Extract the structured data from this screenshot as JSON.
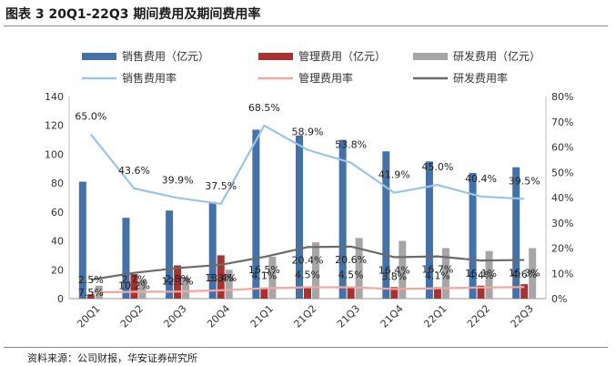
{
  "page": {
    "title": "图表 3 20Q1-22Q3 期间费用及期间费用率",
    "source": "资料来源：公司财报，华安证券研究所"
  },
  "chart_data": {
    "type": "bar",
    "title": "图表 3 20Q1-22Q3 期间费用及期间费用率",
    "categories": [
      "20Q1",
      "20Q2",
      "20Q3",
      "20Q4",
      "21Q1",
      "21Q2",
      "21Q3",
      "21Q4",
      "22Q1",
      "22Q2",
      "22Q3"
    ],
    "y_left": {
      "min": 0,
      "max": 140,
      "step": 20,
      "ticks": [
        "0",
        "20",
        "40",
        "60",
        "80",
        "100",
        "120",
        "140"
      ]
    },
    "y_right": {
      "min": 0,
      "max": 80,
      "step": 10,
      "ticks": [
        "0%",
        "10%",
        "20%",
        "30%",
        "40%",
        "50%",
        "60%",
        "70%",
        "80%"
      ]
    },
    "series": [
      {
        "name": "销售费用（亿元）",
        "type": "bar",
        "axis": "left",
        "color": "#4472a8",
        "values": [
          81,
          56,
          61,
          67,
          117,
          113,
          110,
          102,
          95,
          87,
          91
        ]
      },
      {
        "name": "管理费用（亿元）",
        "type": "bar",
        "axis": "left",
        "color": "#a83232",
        "values": [
          3,
          17,
          23,
          30,
          7,
          8,
          8,
          8,
          8,
          9,
          10
        ]
      },
      {
        "name": "研发费用（亿元）",
        "type": "bar",
        "axis": "left",
        "color": "#a6a6a6",
        "values": [
          9,
          13,
          15,
          20,
          29,
          39,
          42,
          40,
          35,
          33,
          35
        ]
      },
      {
        "name": "销售费用率",
        "type": "line",
        "axis": "right",
        "color": "#9dc3e6",
        "values": [
          65.0,
          43.6,
          39.9,
          37.5,
          68.5,
          58.9,
          53.8,
          41.9,
          45.0,
          40.4,
          39.5
        ],
        "labels": [
          "65.0%",
          "43.6%",
          "39.9%",
          "37.5%",
          "68.5%",
          "58.9%",
          "53.8%",
          "41.9%",
          "45.0%",
          "40.4%",
          "39.5%"
        ]
      },
      {
        "name": "管理费用率",
        "type": "line",
        "axis": "right",
        "color": "#f4a6a0",
        "values": [
          2.5,
          2.7,
          2.8,
          3.3,
          4.1,
          4.5,
          4.5,
          3.8,
          4.1,
          4.4,
          4.6
        ],
        "labels": [
          "2.5%",
          "2.7%",
          "2.8%",
          "3.3%",
          "4.1%",
          "4.5%",
          "4.5%",
          "3.8%",
          "4.1%",
          "4.4%",
          "4.6%"
        ]
      },
      {
        "name": "研发费用率",
        "type": "line",
        "axis": "right",
        "color": "#6b6b6b",
        "values": [
          7.5,
          10.2,
          12.1,
          13.4,
          16.5,
          20.4,
          20.6,
          16.4,
          16.7,
          15.1,
          15.3
        ],
        "labels": [
          "7.5%",
          "10.2%",
          "12.1%",
          "13.4%",
          "16.5%",
          "20.4%",
          "20.6%",
          "16.4%",
          "16.7%",
          "15.1%",
          "15.3%"
        ]
      }
    ],
    "legend": "top",
    "grid": false
  }
}
